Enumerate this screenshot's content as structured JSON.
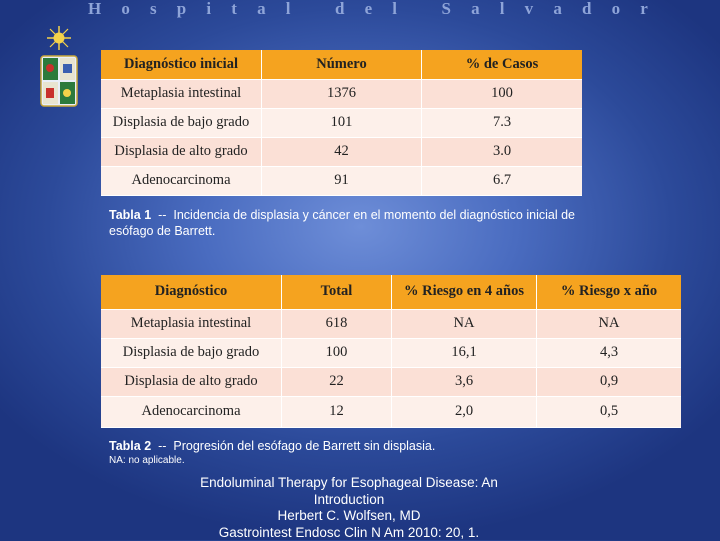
{
  "header": {
    "title": "Hospital del Salvador"
  },
  "logo": {
    "icon": "university-crest-icon"
  },
  "table1": {
    "headers": [
      "Diagnóstico inicial",
      "Número",
      "% de Casos"
    ],
    "rows": [
      [
        "Metaplasia intestinal",
        "1376",
        "100"
      ],
      [
        "Displasia de bajo grado",
        "101",
        "7.3"
      ],
      [
        "Displasia de alto grado",
        "42",
        "3.0"
      ],
      [
        "Adenocarcinoma",
        "91",
        "6.7"
      ]
    ],
    "caption_label": "Tabla 1",
    "caption_sep": "  --  ",
    "caption_text": "Incidencia de displasia y cáncer en el momento del diagnóstico inicial de esófago de Barrett."
  },
  "table2": {
    "headers": [
      "Diagnóstico",
      "Total",
      "% Riesgo en 4 años",
      "% Riesgo x año"
    ],
    "rows": [
      [
        "Metaplasia intestinal",
        "618",
        "NA",
        "NA"
      ],
      [
        "Displasia de bajo grado",
        "100",
        "16,1",
        "4,3"
      ],
      [
        "Displasia de alto grado",
        "22",
        "3,6",
        "0,9"
      ],
      [
        "Adenocarcinoma",
        "12",
        "2,0",
        "0,5"
      ]
    ],
    "caption_label": "Tabla 2",
    "caption_sep": "  --  ",
    "caption_text": "Progresión del esófago de Barrett sin displasia.",
    "note": "NA: no aplicable."
  },
  "citation": {
    "line1": "Endoluminal Therapy for Esophageal Disease: An",
    "line2": "Introduction",
    "line3": "Herbert C. Wolfsen, MD",
    "line4": "Gastrointest Endosc Clin N Am 2010: 20, 1."
  }
}
